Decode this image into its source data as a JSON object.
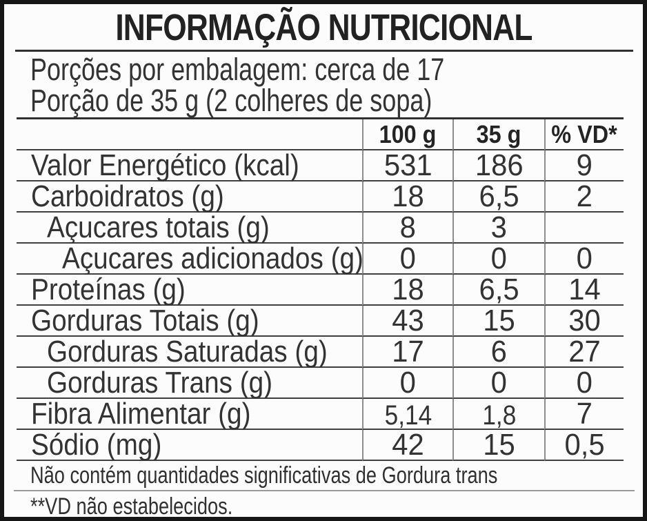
{
  "title": "INFORMAÇÃO NUTRICIONAL",
  "serving_info": {
    "servings_per_package": "Porções por embalagem: cerca de 17",
    "serving_size": "Porção de 35 g (2 colheres de sopa)"
  },
  "table": {
    "columns": [
      "100 g",
      "35 g",
      "% VD*"
    ],
    "rows": [
      {
        "label": "Valor Energético (kcal)",
        "indent": 0,
        "per100g": "531",
        "per35g": "186",
        "vd": "9"
      },
      {
        "label": "Carboidratos (g)",
        "indent": 0,
        "per100g": "18",
        "per35g": "6,5",
        "vd": "2"
      },
      {
        "label": "Açucares totais (g)",
        "indent": 1,
        "per100g": "8",
        "per35g": "3",
        "vd": ""
      },
      {
        "label": "Açucares adicionados (g)",
        "indent": 2,
        "per100g": "0",
        "per35g": "0",
        "vd": "0"
      },
      {
        "label": "Proteínas (g)",
        "indent": 0,
        "per100g": "18",
        "per35g": "6,5",
        "vd": "14"
      },
      {
        "label": "Gorduras Totais (g)",
        "indent": 0,
        "per100g": "43",
        "per35g": "15",
        "vd": "30"
      },
      {
        "label": "Gorduras Saturadas (g)",
        "indent": 1,
        "per100g": "17",
        "per35g": "6",
        "vd": "27"
      },
      {
        "label": "Gorduras Trans (g)",
        "indent": 1,
        "per100g": "0",
        "per35g": "0",
        "vd": "0"
      },
      {
        "label": "Fibra Alimentar (g)",
        "indent": 0,
        "per100g": "5,14",
        "per35g": "1,8",
        "vd": "7"
      },
      {
        "label": "Sódio (mg)",
        "indent": 0,
        "per100g": "42",
        "per35g": "15",
        "vd": "0,5"
      }
    ]
  },
  "footnotes": {
    "trans_fat_note": "Não contém quantidades significativas de Gordura trans",
    "vd_note": "**VD não estabelecidos."
  },
  "colors": {
    "background": "#fcfcfc",
    "text": "#2e2e2e",
    "outer_border": "#161616",
    "grid_horizontal": "#3f3f3f",
    "grid_vertical": "#8d8d8d"
  }
}
